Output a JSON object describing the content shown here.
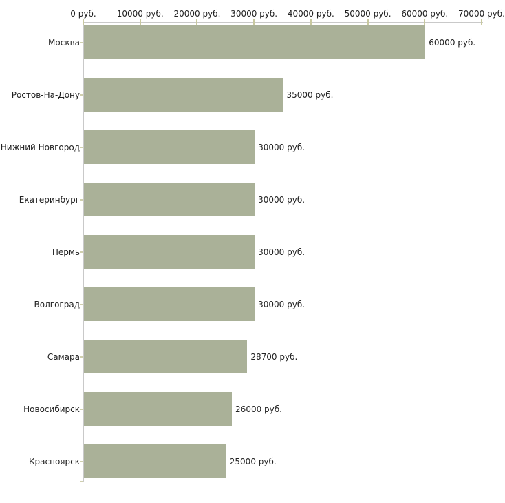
{
  "chart_data": {
    "type": "bar",
    "orientation": "horizontal",
    "title": "",
    "xlabel": "",
    "ylabel": "",
    "legend": false,
    "grid": false,
    "categories": [
      "Москва",
      "Ростов-На-Дону",
      "Нижний Новгород",
      "Екатеринбург",
      "Пермь",
      "Волгоград",
      "Самара",
      "Новосибирск",
      "Красноярск"
    ],
    "values": [
      60000,
      35000,
      30000,
      30000,
      30000,
      30000,
      28700,
      26000,
      25000
    ],
    "value_labels": [
      "60000 руб.",
      "35000 руб.",
      "30000 руб.",
      "30000 руб.",
      "30000 руб.",
      "30000 руб.",
      "28700 руб.",
      "26000 руб.",
      "25000 руб."
    ],
    "unit": "руб.",
    "x_axis": {
      "position": "top",
      "min": 0,
      "max": 70000,
      "ticks": [
        0,
        10000,
        20000,
        30000,
        40000,
        50000,
        60000,
        70000
      ],
      "tick_labels": [
        "0 руб.",
        "10000 руб.",
        "20000 руб.",
        "30000 руб.",
        "40000 руб.",
        "50000 руб.",
        "60000 руб.",
        "70000 руб."
      ]
    },
    "colors": {
      "bar": "#aab198",
      "axis_line": "#c9c9c9",
      "x_tick": "#c9c9a0",
      "category_tick": "#cfcfad",
      "text": "#222222",
      "background": "#ffffff"
    }
  }
}
